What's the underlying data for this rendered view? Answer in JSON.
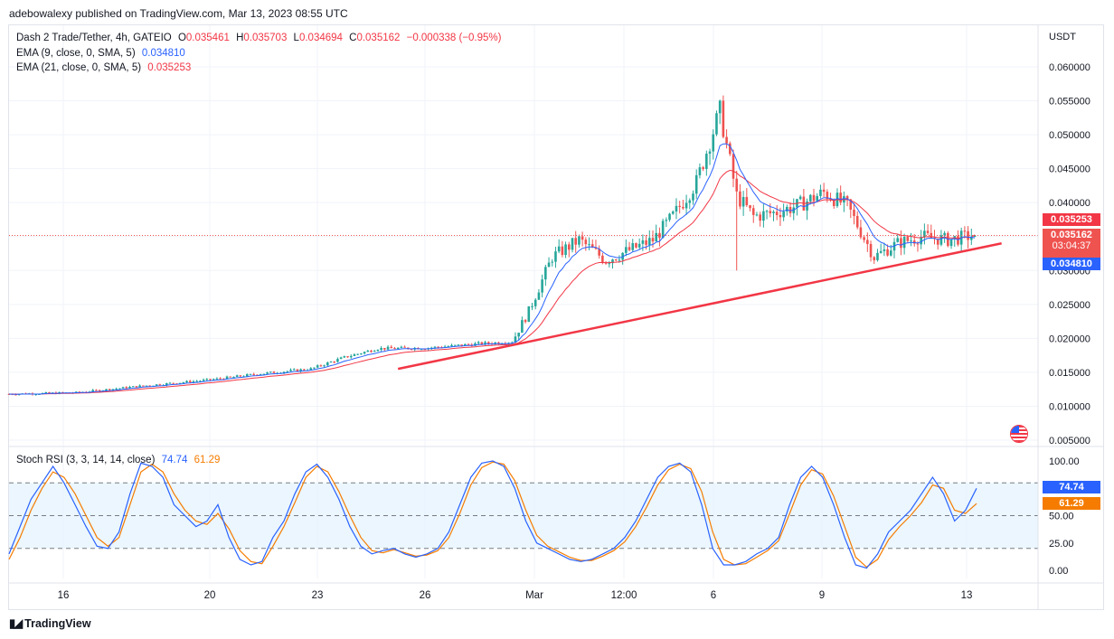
{
  "caption": "adebowalexy published on TradingView.com, Mar 13, 2023 08:55 UTC",
  "footer": {
    "brand": "TradingView",
    "logo_icon": "tradingview-logo-icon"
  },
  "legend": {
    "symbol": "Dash 2 Trade/Tether, 4h, GATEIO",
    "o_label": "O",
    "o_value": "0.035461",
    "h_label": "H",
    "h_value": "0.035703",
    "l_label": "L",
    "l_value": "0.034694",
    "c_label": "C",
    "c_value": "0.035162",
    "change": "−0.000338 (−0.95%)",
    "ema9_label": "EMA (9, close, 0, SMA, 5)",
    "ema9_value": "0.034810",
    "ema21_label": "EMA (21, close, 0, SMA, 5)",
    "ema21_value": "0.035253",
    "stoch_label": "Stoch RSI (3, 3, 14, 14, close)",
    "stoch_k": "74.74",
    "stoch_d": "61.29"
  },
  "price_tags": {
    "ema21": "0.035253",
    "close": "0.035162",
    "countdown": "03:04:37",
    "ema9": "0.034810"
  },
  "rsi_tags": {
    "k": "74.74",
    "d": "61.29"
  },
  "colors": {
    "up": "#26a69a",
    "down": "#ef5350",
    "ema9": "#2962ff",
    "ema21": "#f23645",
    "stoch_k": "#2962ff",
    "stoch_d": "#f57c00",
    "trendline": "#f23645",
    "band": "#e3f2fd"
  },
  "chart_data": [
    {
      "type": "candlestick",
      "title": "Dash 2 Trade/Tether, 4h, GATEIO",
      "ylabel": "USDT",
      "ylim": [
        0.005,
        0.0635
      ],
      "y_ticks": [
        "0.060000",
        "0.055000",
        "0.050000",
        "0.045000",
        "0.040000",
        "0.035000",
        "0.030000",
        "0.025000",
        "0.020000",
        "0.015000",
        "0.010000",
        "0.005000"
      ],
      "x_ticks": [
        "16",
        "20",
        "23",
        "26",
        "Mar",
        "12:00",
        "6",
        "9",
        "13"
      ],
      "grid": true,
      "anchors": [
        {
          "i": 0,
          "v": 0.0118
        },
        {
          "i": 20,
          "v": 0.012
        },
        {
          "i": 40,
          "v": 0.013
        },
        {
          "i": 60,
          "v": 0.0139
        },
        {
          "i": 75,
          "v": 0.0148
        },
        {
          "i": 90,
          "v": 0.0155
        },
        {
          "i": 100,
          "v": 0.0172
        },
        {
          "i": 110,
          "v": 0.0185
        },
        {
          "i": 125,
          "v": 0.0186
        },
        {
          "i": 140,
          "v": 0.0192
        },
        {
          "i": 150,
          "v": 0.0195
        },
        {
          "i": 155,
          "v": 0.024
        },
        {
          "i": 162,
          "v": 0.032
        },
        {
          "i": 170,
          "v": 0.0345
        },
        {
          "i": 178,
          "v": 0.0315
        },
        {
          "i": 185,
          "v": 0.033
        },
        {
          "i": 192,
          "v": 0.0345
        },
        {
          "i": 198,
          "v": 0.038
        },
        {
          "i": 205,
          "v": 0.043
        },
        {
          "i": 212,
          "v": 0.0535
        },
        {
          "i": 217,
          "v": 0.041
        },
        {
          "i": 222,
          "v": 0.038
        },
        {
          "i": 228,
          "v": 0.0385
        },
        {
          "i": 235,
          "v": 0.0395
        },
        {
          "i": 243,
          "v": 0.0415
        },
        {
          "i": 250,
          "v": 0.0395
        },
        {
          "i": 258,
          "v": 0.032
        },
        {
          "i": 265,
          "v": 0.034
        },
        {
          "i": 272,
          "v": 0.035
        },
        {
          "i": 280,
          "v": 0.0345
        },
        {
          "i": 288,
          "v": 0.0352
        }
      ],
      "ema9_value": 0.03481,
      "ema21_value": 0.035253,
      "last_close": 0.035162,
      "trendline": [
        {
          "i": 116,
          "v": 0.0155
        },
        {
          "i": 296,
          "v": 0.034
        }
      ]
    },
    {
      "type": "line",
      "title": "Stoch RSI (3, 3, 14, 14, close)",
      "ylim": [
        -5,
        105
      ],
      "y_ticks": [
        "100.00",
        "75.00",
        "50.00",
        "25.00",
        "0.00"
      ],
      "band": [
        20,
        80
      ],
      "series": [
        {
          "name": "K",
          "values": [
            15,
            40,
            65,
            80,
            95,
            80,
            60,
            40,
            22,
            20,
            35,
            70,
            98,
            95,
            85,
            60,
            50,
            40,
            45,
            60,
            30,
            10,
            5,
            8,
            30,
            45,
            70,
            90,
            97,
            85,
            65,
            40,
            22,
            15,
            18,
            20,
            15,
            12,
            15,
            20,
            35,
            60,
            85,
            98,
            100,
            95,
            75,
            45,
            25,
            20,
            15,
            10,
            8,
            10,
            15,
            20,
            30,
            45,
            65,
            85,
            95,
            98,
            90,
            60,
            20,
            5,
            5,
            8,
            15,
            20,
            30,
            60,
            85,
            95,
            85,
            60,
            30,
            5,
            2,
            15,
            35,
            45,
            55,
            70,
            85,
            70,
            45,
            55,
            75
          ]
        },
        {
          "name": "D",
          "values": [
            10,
            30,
            55,
            75,
            90,
            85,
            70,
            50,
            30,
            22,
            30,
            60,
            90,
            97,
            90,
            70,
            55,
            45,
            42,
            52,
            38,
            18,
            8,
            6,
            22,
            40,
            62,
            85,
            95,
            90,
            72,
            50,
            30,
            18,
            16,
            19,
            16,
            13,
            14,
            18,
            30,
            52,
            78,
            94,
            99,
            97,
            82,
            55,
            32,
            22,
            17,
            12,
            9,
            9,
            13,
            18,
            26,
            40,
            58,
            78,
            92,
            97,
            93,
            72,
            35,
            10,
            5,
            6,
            12,
            18,
            27,
            52,
            78,
            92,
            88,
            68,
            40,
            12,
            3,
            10,
            28,
            40,
            50,
            62,
            78,
            75,
            55,
            52,
            61
          ]
        }
      ]
    }
  ]
}
